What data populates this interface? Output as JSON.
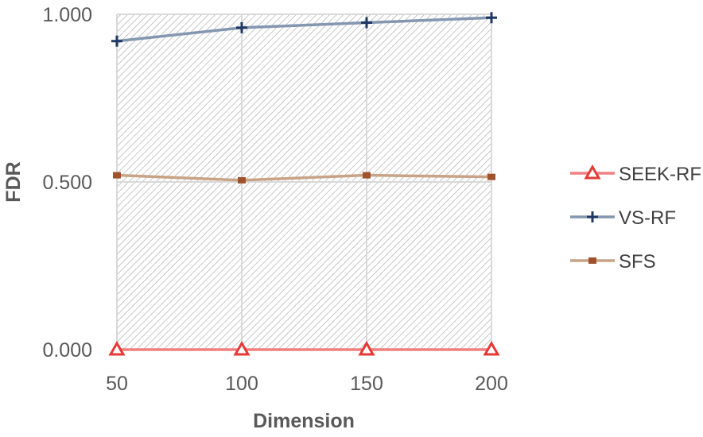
{
  "chart_data": {
    "type": "line",
    "x": [
      50,
      100,
      150,
      200
    ],
    "xlabel": "Dimension",
    "ylabel": "FDR",
    "ylim": [
      0,
      1
    ],
    "y_tick_labels": [
      "0.000",
      "0.500",
      "1.000"
    ],
    "x_tick_labels": [
      "50",
      "100",
      "150",
      "200"
    ],
    "grid": true,
    "legend_position": "right",
    "plot_background": "diagonal-hatch-gray",
    "series": [
      {
        "name": "SEEK-RF",
        "values": [
          0.0,
          0.0,
          0.0,
          0.0
        ],
        "color": "#f08080",
        "marker": "triangle",
        "marker_color": "#e53935"
      },
      {
        "name": "VS-RF",
        "values": [
          0.92,
          0.96,
          0.975,
          0.99
        ],
        "color": "#8497b0",
        "marker": "plus",
        "marker_color": "#203864"
      },
      {
        "name": "SFS",
        "values": [
          0.52,
          0.505,
          0.52,
          0.515
        ],
        "color": "#c9a385",
        "marker": "square",
        "marker_color": "#a0522d"
      }
    ]
  }
}
